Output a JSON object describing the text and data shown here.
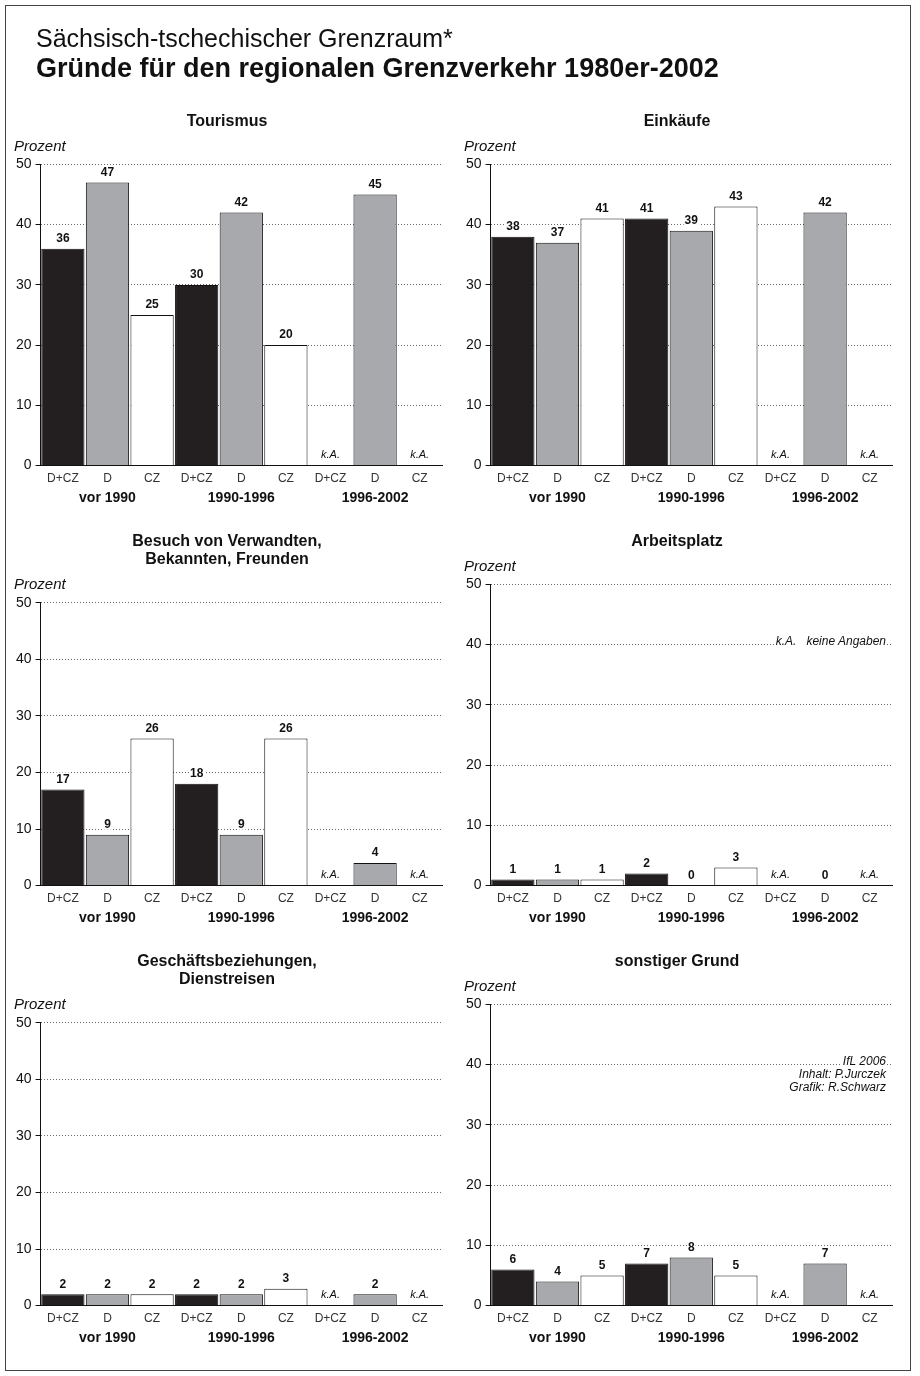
{
  "chart_data": [
    {
      "type": "other",
      "title": "Gründe für den regionalen Grenzverkehr 1980er-2002",
      "subtitle": "Sächsisch-tschechischer Grenzraum*"
    },
    {
      "type": "bar",
      "title": "Tourismus",
      "ylabel": "Prozent",
      "categories": [
        "D+CZ",
        "D",
        "CZ",
        "D+CZ",
        "D",
        "CZ",
        "D+CZ",
        "D",
        "CZ"
      ],
      "values": [
        36,
        47,
        25,
        30,
        42,
        20,
        null,
        45,
        null
      ],
      "colors": [
        "#231f20",
        "#a7a9ac",
        "#ffffff",
        "#231f20",
        "#a7a9ac",
        "#ffffff",
        "#231f20",
        "#a7a9ac",
        "#ffffff"
      ],
      "value_labels": [
        "36",
        "47",
        "25",
        "30",
        "42",
        "20",
        "k.A.",
        "45",
        "k.A."
      ],
      "ylim": [
        0,
        50
      ],
      "yticks": [
        0,
        10,
        20,
        30,
        40,
        50
      ],
      "grid": "y",
      "annotations": [
        "vor 1990",
        "1990-1996",
        "1996-2002"
      ]
    },
    {
      "type": "bar",
      "title": "Einkäufe",
      "ylabel": "Prozent",
      "categories": [
        "D+CZ",
        "D",
        "CZ",
        "D+CZ",
        "D",
        "CZ",
        "D+CZ",
        "D",
        "CZ"
      ],
      "values": [
        38,
        37,
        41,
        41,
        39,
        43,
        null,
        42,
        null
      ],
      "colors": [
        "#231f20",
        "#a7a9ac",
        "#ffffff",
        "#231f20",
        "#a7a9ac",
        "#ffffff",
        "#231f20",
        "#a7a9ac",
        "#ffffff"
      ],
      "value_labels": [
        "38",
        "37",
        "41",
        "41",
        "39",
        "43",
        "k.A.",
        "42",
        "k.A."
      ],
      "ylim": [
        0,
        50
      ],
      "yticks": [
        0,
        10,
        20,
        30,
        40,
        50
      ],
      "grid": "y",
      "annotations": [
        "vor 1990",
        "1990-1996",
        "1996-2002"
      ]
    },
    {
      "type": "bar",
      "title": "Besuch von Verwandten, Bekannten, Freunden",
      "ylabel": "Prozent",
      "categories": [
        "D+CZ",
        "D",
        "CZ",
        "D+CZ",
        "D",
        "CZ",
        "D+CZ",
        "D",
        "CZ"
      ],
      "values": [
        17,
        9,
        26,
        18,
        9,
        26,
        null,
        4,
        null
      ],
      "colors": [
        "#231f20",
        "#a7a9ac",
        "#ffffff",
        "#231f20",
        "#a7a9ac",
        "#ffffff",
        "#231f20",
        "#a7a9ac",
        "#ffffff"
      ],
      "value_labels": [
        "17",
        "9",
        "26",
        "18",
        "9",
        "26",
        "k.A.",
        "4",
        "k.A."
      ],
      "ylim": [
        0,
        50
      ],
      "yticks": [
        0,
        10,
        20,
        30,
        40,
        50
      ],
      "grid": "y",
      "annotations": [
        "vor 1990",
        "1990-1996",
        "1996-2002"
      ]
    },
    {
      "type": "bar",
      "title": "Arbeitsplatz",
      "ylabel": "Prozent",
      "categories": [
        "D+CZ",
        "D",
        "CZ",
        "D+CZ",
        "D",
        "CZ",
        "D+CZ",
        "D",
        "CZ"
      ],
      "values": [
        1,
        1,
        1,
        2,
        0,
        3,
        null,
        0,
        null
      ],
      "colors": [
        "#231f20",
        "#a7a9ac",
        "#ffffff",
        "#231f20",
        "#a7a9ac",
        "#ffffff",
        "#231f20",
        "#a7a9ac",
        "#ffffff"
      ],
      "value_labels": [
        "1",
        "1",
        "1",
        "2",
        "0",
        "3",
        "k.A.",
        "0",
        "k.A."
      ],
      "ylim": [
        0,
        50
      ],
      "yticks": [
        0,
        10,
        20,
        30,
        40,
        50
      ],
      "grid": "y",
      "annotations": [
        "vor 1990",
        "1990-1996",
        "1996-2002",
        "k.A.   keine Angaben"
      ]
    },
    {
      "type": "bar",
      "title": "Geschäftsbeziehungen, Dienstreisen",
      "ylabel": "Prozent",
      "categories": [
        "D+CZ",
        "D",
        "CZ",
        "D+CZ",
        "D",
        "CZ",
        "D+CZ",
        "D",
        "CZ"
      ],
      "values": [
        2,
        2,
        2,
        2,
        2,
        3,
        null,
        2,
        null
      ],
      "colors": [
        "#231f20",
        "#a7a9ac",
        "#ffffff",
        "#231f20",
        "#a7a9ac",
        "#ffffff",
        "#231f20",
        "#a7a9ac",
        "#ffffff"
      ],
      "value_labels": [
        "2",
        "2",
        "2",
        "2",
        "2",
        "3",
        "k.A.",
        "2",
        "k.A."
      ],
      "ylim": [
        0,
        50
      ],
      "yticks": [
        0,
        10,
        20,
        30,
        40,
        50
      ],
      "grid": "y",
      "annotations": [
        "vor 1990",
        "1990-1996",
        "1996-2002"
      ]
    },
    {
      "type": "bar",
      "title": "sonstiger Grund",
      "ylabel": "Prozent",
      "categories": [
        "D+CZ",
        "D",
        "CZ",
        "D+CZ",
        "D",
        "CZ",
        "D+CZ",
        "D",
        "CZ"
      ],
      "values": [
        6,
        4,
        5,
        7,
        8,
        5,
        null,
        7,
        null
      ],
      "colors": [
        "#231f20",
        "#a7a9ac",
        "#ffffff",
        "#231f20",
        "#a7a9ac",
        "#ffffff",
        "#231f20",
        "#a7a9ac",
        "#ffffff"
      ],
      "value_labels": [
        "6",
        "4",
        "5",
        "7",
        "8",
        "5",
        "k.A.",
        "7",
        "k.A."
      ],
      "ylim": [
        0,
        50
      ],
      "yticks": [
        0,
        10,
        20,
        30,
        40,
        50
      ],
      "grid": "y",
      "annotations": [
        "vor 1990",
        "1990-1996",
        "1996-2002",
        "IfL 2006",
        "Inhalt: P.Jurczek",
        "Grafik: R.Schwarz"
      ]
    }
  ]
}
